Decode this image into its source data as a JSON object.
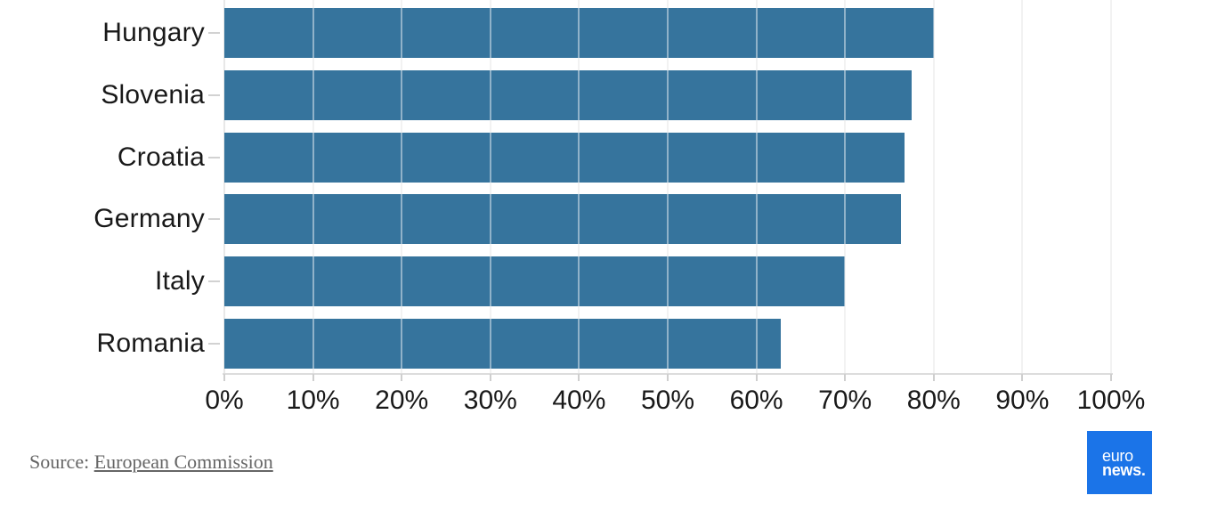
{
  "chart_data": {
    "type": "bar",
    "orientation": "horizontal",
    "title": "",
    "categories": [
      "Hungary",
      "Slovenia",
      "Croatia",
      "Germany",
      "Italy",
      "Romania"
    ],
    "values": [
      80,
      77.5,
      76.7,
      76.3,
      70,
      62.8
    ],
    "unit": "%",
    "xlim": [
      0,
      100
    ],
    "x_tick_step": 10,
    "x_tick_labels": [
      "0%",
      "10%",
      "20%",
      "30%",
      "40%",
      "50%",
      "60%",
      "70%",
      "80%",
      "90%",
      "100%"
    ],
    "grid": "vertical",
    "legend": "none",
    "bar_color": "#36749d"
  },
  "footer": {
    "source_prefix": "Source: ",
    "source_link": "European Commission"
  },
  "logo": {
    "line1": "euro",
    "line2": "news.",
    "bg_color": "#1b74e8"
  }
}
